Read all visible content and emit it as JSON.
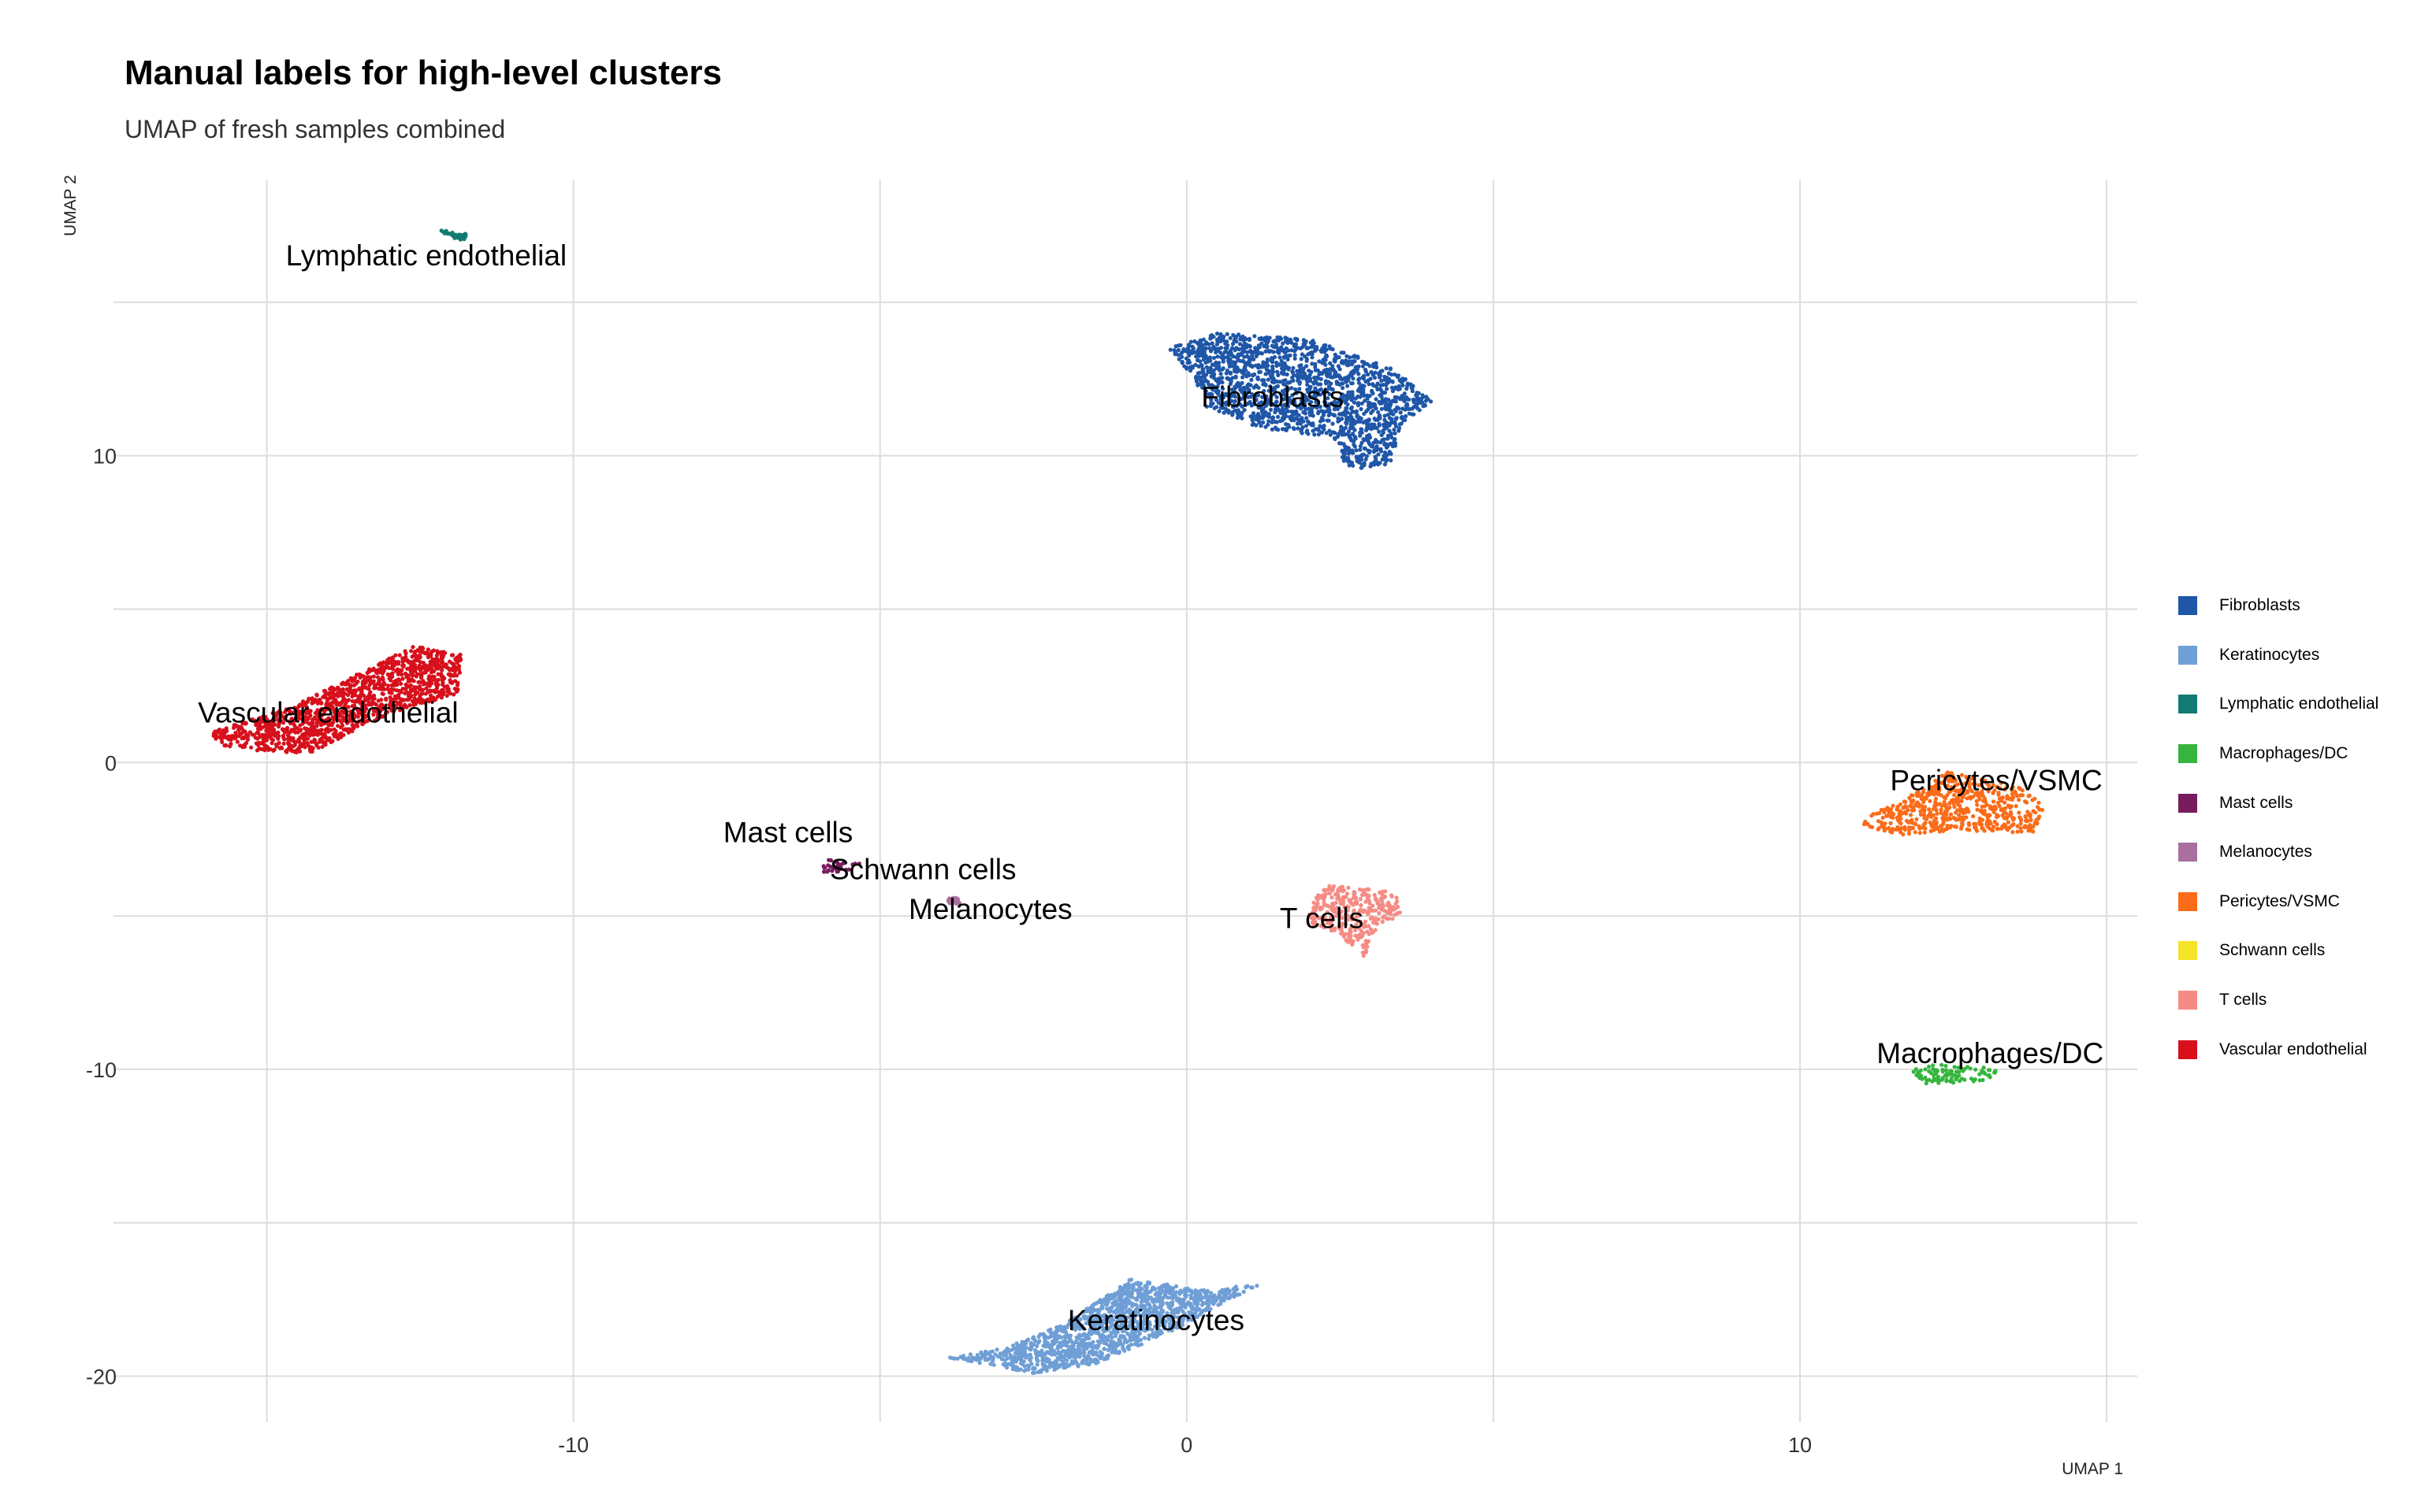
{
  "chart_data": {
    "type": "scatter",
    "title": "Manual labels for high-level clusters",
    "subtitle": "UMAP of fresh samples combined",
    "xlabel": "UMAP 1",
    "ylabel": "UMAP 2",
    "xlim": [
      -17.5,
      15.5
    ],
    "ylim": [
      -21.5,
      19
    ],
    "xticks": [
      -10,
      0,
      10
    ],
    "yticks": [
      -20,
      -10,
      0,
      10
    ],
    "grid": true,
    "legend_position": "right",
    "series": [
      {
        "name": "Fibroblasts",
        "color": "#1f56a8",
        "label_x": 1.4,
        "label_y": 11.6,
        "shape": [
          [
            -0.3,
            13.5
          ],
          [
            0.5,
            14
          ],
          [
            2.0,
            13.8
          ],
          [
            3.4,
            12.8
          ],
          [
            4.0,
            11.8
          ],
          [
            3.5,
            11.0
          ],
          [
            3.3,
            9.6
          ],
          [
            2.6,
            9.6
          ],
          [
            2.4,
            10.6
          ],
          [
            1.2,
            10.9
          ],
          [
            0.3,
            11.6
          ],
          [
            0.1,
            12.6
          ]
        ]
      },
      {
        "name": "Keratinocytes",
        "color": "#6f9fd6",
        "label_x": -0.5,
        "label_y": -18.5,
        "shape": [
          [
            -3.9,
            -19.4
          ],
          [
            -2.5,
            -19.9
          ],
          [
            -1.5,
            -19.6
          ],
          [
            -0.3,
            -18.6
          ],
          [
            0.6,
            -17.6
          ],
          [
            1.2,
            -17.0
          ],
          [
            0.2,
            -17.2
          ],
          [
            -0.9,
            -16.8
          ],
          [
            -2.0,
            -18.3
          ],
          [
            -3.0,
            -19.1
          ]
        ]
      },
      {
        "name": "Lymphatic endothelial",
        "color": "#117b72",
        "label_x": -12.4,
        "label_y": 16.2,
        "shape": [
          [
            -12.2,
            17.4
          ],
          [
            -11.7,
            17.2
          ],
          [
            -11.8,
            17.0
          ],
          [
            -12.1,
            17.2
          ]
        ]
      },
      {
        "name": "Macrophages/DC",
        "color": "#36b53e",
        "label_x": 13.1,
        "label_y": -9.8,
        "shape": [
          [
            11.8,
            -10.0
          ],
          [
            12.3,
            -9.8
          ],
          [
            13.3,
            -10.0
          ],
          [
            13.0,
            -10.4
          ],
          [
            12.0,
            -10.5
          ]
        ]
      },
      {
        "name": "Mast cells",
        "color": "#781c5e",
        "label_x": -6.5,
        "label_y": -2.6,
        "shape": [
          [
            -6.0,
            -3.4
          ],
          [
            -5.8,
            -3.1
          ],
          [
            -5.3,
            -3.3
          ],
          [
            -5.6,
            -3.6
          ],
          [
            -5.9,
            -3.6
          ]
        ]
      },
      {
        "name": "Melanocytes",
        "color": "#a96f9e",
        "label_x": -3.2,
        "label_y": -5.1,
        "shape": [
          [
            -3.9,
            -4.4
          ],
          [
            -3.7,
            -4.4
          ],
          [
            -3.7,
            -4.6
          ],
          [
            -3.9,
            -4.6
          ]
        ]
      },
      {
        "name": "Pericytes/VSMC",
        "color": "#fb6c1a",
        "label_x": 13.2,
        "label_y": -0.9,
        "shape": [
          [
            11.3,
            -1.5
          ],
          [
            12.0,
            -0.9
          ],
          [
            12.4,
            -0.3
          ],
          [
            13.6,
            -0.8
          ],
          [
            14.0,
            -1.4
          ],
          [
            13.8,
            -2.3
          ],
          [
            12.5,
            -2.2
          ],
          [
            11.6,
            -2.4
          ],
          [
            11.0,
            -2.0
          ]
        ]
      },
      {
        "name": "Schwann cells",
        "color": "#f4e526",
        "label_x": -4.3,
        "label_y": -3.8,
        "shape": []
      },
      {
        "name": "T cells",
        "color": "#f68b84",
        "label_x": 2.2,
        "label_y": -5.4,
        "shape": [
          [
            2.0,
            -4.6
          ],
          [
            2.3,
            -4.0
          ],
          [
            3.4,
            -4.2
          ],
          [
            3.5,
            -4.9
          ],
          [
            3.0,
            -5.6
          ],
          [
            2.9,
            -6.4
          ],
          [
            2.5,
            -5.6
          ],
          [
            2.0,
            -5.3
          ]
        ]
      },
      {
        "name": "Vascular endothelial",
        "color": "#d7101c",
        "label_x": -14.0,
        "label_y": 1.3,
        "shape": [
          [
            -15.9,
            1.0
          ],
          [
            -14.6,
            1.8
          ],
          [
            -12.6,
            3.8
          ],
          [
            -11.8,
            3.5
          ],
          [
            -11.9,
            2.2
          ],
          [
            -13.0,
            1.6
          ],
          [
            -14.3,
            0.3
          ],
          [
            -15.3,
            0.4
          ],
          [
            -15.8,
            0.6
          ]
        ]
      }
    ]
  }
}
